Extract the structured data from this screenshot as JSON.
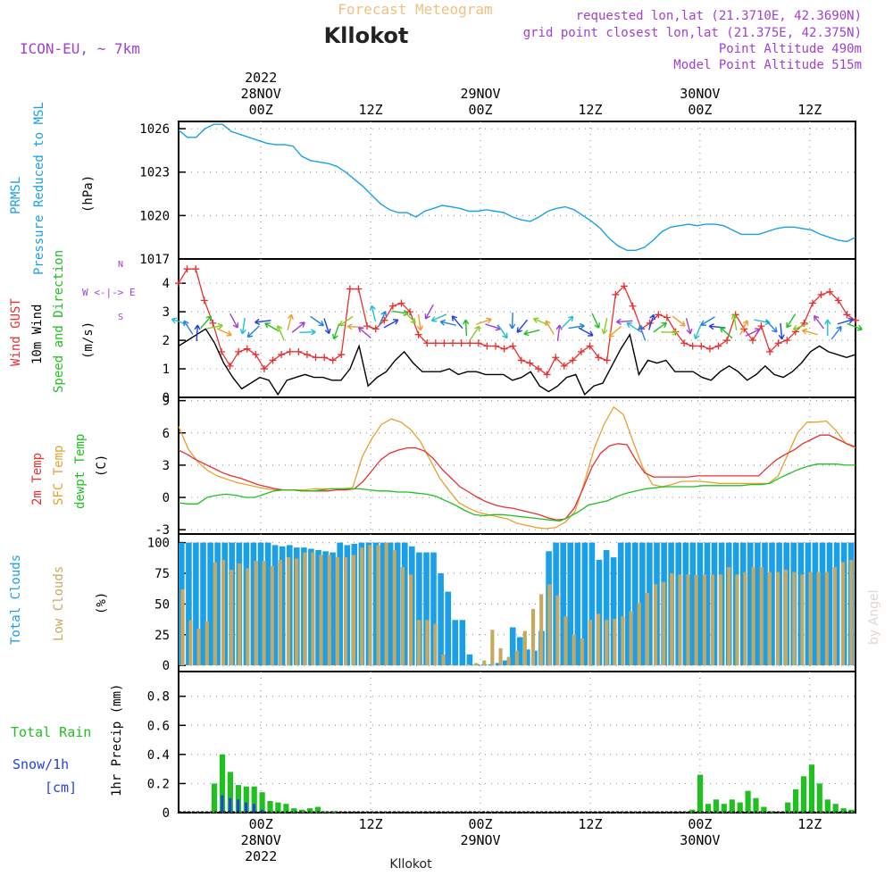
{
  "header": {
    "forecast_title": "Forecast Meteogram",
    "location": "Kllokot",
    "model": "ICON-EU, ~ 7km",
    "requested": "requested lon,lat (21.3710E, 42.3690N)",
    "grid_point": "grid point closest lon,lat (21.375E, 42.375N)",
    "point_altitude": "Point Altitude 490m",
    "model_altitude": "Model Point Altitude 515m",
    "footer_location": "Kllokot",
    "credit": "by Angel"
  },
  "time_axis": {
    "top_ticks": [
      "00Z",
      "12Z",
      "00Z",
      "12Z",
      "00Z",
      "12Z"
    ],
    "top_dates": [
      "28NOV",
      "29NOV",
      "30NOV"
    ],
    "year": "2022",
    "bottom_ticks": [
      "00Z",
      "12Z",
      "00Z",
      "12Z",
      "00Z",
      "12Z"
    ],
    "bottom_dates": [
      "28NOV",
      "29NOV",
      "30NOV"
    ]
  },
  "panels": {
    "pressure": {
      "label1": "PRMSL",
      "label2": "Pressure Reduced to MSL",
      "unit": "(hPa)",
      "ticks": [
        "1026",
        "1023",
        "1020",
        "1017"
      ]
    },
    "wind": {
      "label_gust": "Wind GUST",
      "label_wind": "10m Wind",
      "label_speed": "Speed and Direction",
      "unit": "(m/s)",
      "ticks": [
        "4",
        "3",
        "2",
        "1",
        "0"
      ],
      "compass_n": "N",
      "compass_s": "S",
      "compass_we": "W <-|-> E"
    },
    "temp": {
      "label_2m": "2m Temp",
      "label_sfc": "SFC Temp",
      "label_dew": "dewpt Temp",
      "unit": "(C)",
      "ticks": [
        "9",
        "6",
        "3",
        "0",
        "-3"
      ]
    },
    "clouds": {
      "label_total": "Total Clouds",
      "label_low": "Low Clouds",
      "unit": "(%)",
      "ticks": [
        "100",
        "75",
        "50",
        "25",
        "0"
      ]
    },
    "precip": {
      "label_rain": "Total Rain",
      "label_snow": "Snow/1h",
      "label_cm": "[cm]",
      "unit": "1hr Precip (mm)",
      "ticks": [
        "0.8",
        "0.6",
        "0.4",
        "0.2",
        "0"
      ]
    }
  },
  "colors": {
    "pressure": "#1aa0e8",
    "gust": "#e83030",
    "wind": "#000000",
    "t2m": "#e83030",
    "tsfc": "#e8a030",
    "dew": "#20c020",
    "total_clouds": "#1aa0e8",
    "low_clouds": "#c8a860",
    "rain": "#20c020",
    "snow": "#2040e8",
    "title_orange": "#f0c080",
    "purple": "#a040d0"
  },
  "chart_data": {
    "type": "line",
    "x_start": "2022-11-27T15Z",
    "x_step_hours": 1,
    "x_end": "2022-11-30T17Z",
    "pressure_hpa": [
      1025.9,
      1025.4,
      1025.4,
      1026.0,
      1026.3,
      1026.3,
      1025.8,
      1025.6,
      1025.4,
      1025.2,
      1025.0,
      1024.9,
      1024.9,
      1024.8,
      1024.1,
      1023.8,
      1023.7,
      1023.6,
      1023.4,
      1023.0,
      1022.5,
      1022.0,
      1021.4,
      1020.8,
      1020.4,
      1020.2,
      1020.2,
      1019.9,
      1020.3,
      1020.5,
      1020.7,
      1020.6,
      1020.5,
      1020.3,
      1020.3,
      1020.4,
      1020.3,
      1020.2,
      1019.9,
      1019.7,
      1019.6,
      1019.9,
      1020.3,
      1020.5,
      1020.6,
      1020.4,
      1020.0,
      1019.6,
      1019.1,
      1018.4,
      1017.9,
      1017.6,
      1017.6,
      1017.8,
      1018.3,
      1018.9,
      1019.2,
      1019.3,
      1019.4,
      1019.3,
      1019.4,
      1019.4,
      1019.3,
      1019.0,
      1018.7,
      1018.7,
      1018.7,
      1018.9,
      1019.1,
      1019.2,
      1019.2,
      1019.1,
      1019.0,
      1018.7,
      1018.5,
      1018.3,
      1018.2,
      1018.5
    ],
    "wind_gust_ms": [
      4.0,
      4.5,
      4.5,
      3.4,
      2.6,
      1.6,
      1.1,
      1.6,
      1.7,
      1.5,
      1.0,
      1.3,
      1.5,
      1.6,
      1.6,
      1.5,
      1.4,
      1.4,
      1.3,
      1.5,
      3.8,
      3.8,
      2.5,
      2.4,
      2.7,
      3.2,
      3.3,
      3.0,
      2.2,
      1.9,
      1.9,
      1.9,
      1.9,
      1.9,
      1.9,
      1.9,
      1.8,
      1.8,
      1.7,
      1.8,
      1.3,
      1.2,
      1.0,
      0.8,
      1.4,
      1.1,
      1.3,
      1.6,
      1.8,
      1.4,
      1.3,
      3.6,
      3.9,
      3.2,
      2.4,
      2.6,
      2.9,
      2.8,
      2.3,
      1.9,
      1.8,
      1.8,
      1.7,
      1.8,
      2.0,
      2.9,
      2.4,
      2.0,
      2.5,
      1.6,
      1.9,
      2.0,
      2.3,
      2.6,
      3.3,
      3.6,
      3.7,
      3.4,
      2.9,
      2.7
    ],
    "wind_speed_ms": [
      1.8,
      2.0,
      2.2,
      2.4,
      1.9,
      1.2,
      0.7,
      0.3,
      0.5,
      0.7,
      0.6,
      0.1,
      0.6,
      0.7,
      0.8,
      0.7,
      0.7,
      0.6,
      0.6,
      1.0,
      1.8,
      0.4,
      0.7,
      0.9,
      1.3,
      1.6,
      1.2,
      0.9,
      0.9,
      0.9,
      1.0,
      0.8,
      0.9,
      0.9,
      0.8,
      0.8,
      0.8,
      0.6,
      0.7,
      0.9,
      0.4,
      0.2,
      0.4,
      0.7,
      0.8,
      0.1,
      0.4,
      0.5,
      1.1,
      1.7,
      2.2,
      0.8,
      1.3,
      1.2,
      1.3,
      0.9,
      0.9,
      0.9,
      0.7,
      0.6,
      0.9,
      1.1,
      0.9,
      0.6,
      0.8,
      1.1,
      0.8,
      0.7,
      0.9,
      1.2,
      1.6,
      1.8,
      1.6,
      1.5,
      1.4,
      1.5
    ],
    "temp_2m_c": [
      4.4,
      4.0,
      3.5,
      3.1,
      2.7,
      2.3,
      2.0,
      1.8,
      1.5,
      1.2,
      1.0,
      0.8,
      0.7,
      0.7,
      0.6,
      0.6,
      0.6,
      0.6,
      0.7,
      0.7,
      0.8,
      1.5,
      2.5,
      3.5,
      4.1,
      4.4,
      4.6,
      4.6,
      4.3,
      3.6,
      2.6,
      1.8,
      1.0,
      0.5,
      0.0,
      -0.4,
      -0.7,
      -0.9,
      -1.0,
      -1.2,
      -1.4,
      -1.6,
      -1.9,
      -2.1,
      -2.0,
      -1.0,
      0.8,
      2.8,
      4.1,
      4.8,
      5.0,
      4.9,
      3.5,
      2.3,
      1.9,
      1.9,
      1.9,
      1.9,
      1.9,
      2.0,
      2.0,
      2.0,
      2.0,
      2.0,
      2.0,
      2.0,
      2.0,
      2.8,
      3.5,
      4.0,
      4.4,
      5.0,
      5.4,
      5.8,
      5.8,
      5.4,
      5.0,
      4.7
    ],
    "temp_sfc_c": [
      6.6,
      4.5,
      3.3,
      2.5,
      2.0,
      1.7,
      1.4,
      1.2,
      1.0,
      0.8,
      0.7,
      0.7,
      0.7,
      0.7,
      0.8,
      0.8,
      0.8,
      0.8,
      0.9,
      3.8,
      5.5,
      6.8,
      7.3,
      7.0,
      6.3,
      5.2,
      3.5,
      1.8,
      0.6,
      -0.5,
      -1.0,
      -1.4,
      -1.6,
      -1.8,
      -2.0,
      -2.4,
      -2.6,
      -2.8,
      -2.9,
      -2.8,
      -2.3,
      -1.3,
      1.5,
      4.6,
      6.8,
      8.4,
      7.7,
      5.2,
      2.8,
      1.2,
      1.0,
      1.2,
      1.5,
      1.5,
      1.5,
      1.4,
      1.3,
      1.3,
      1.3,
      1.3,
      1.3,
      1.3,
      2.0,
      4.0,
      6.0,
      7.0,
      7.0,
      7.1,
      6.2,
      5.0,
      4.6
    ],
    "dewpt_c": [
      -0.5,
      -0.6,
      -0.6,
      0.0,
      0.2,
      0.3,
      0.2,
      0.0,
      0.0,
      0.3,
      0.6,
      0.7,
      0.7,
      0.6,
      0.6,
      0.7,
      0.8,
      0.8,
      0.8,
      0.8,
      0.7,
      0.6,
      0.6,
      0.5,
      0.5,
      0.4,
      0.3,
      0.1,
      -0.3,
      -0.7,
      -1.2,
      -1.6,
      -1.7,
      -1.6,
      -1.6,
      -1.7,
      -1.8,
      -1.9,
      -2.0,
      -2.1,
      -2.2,
      -1.8,
      -1.3,
      -0.7,
      -0.5,
      -0.3,
      0.1,
      0.4,
      0.6,
      0.8,
      0.9,
      1.0,
      1.0,
      1.0,
      1.0,
      1.1,
      1.1,
      1.1,
      1.1,
      1.1,
      1.2,
      1.2,
      1.3,
      1.8,
      2.2,
      2.6,
      2.9,
      3.1,
      3.1,
      3.1,
      3.0,
      3.0
    ],
    "total_clouds_pct": [
      100,
      100,
      100,
      100,
      100,
      100,
      100,
      100,
      100,
      100,
      100,
      100,
      100,
      98,
      97,
      98,
      96,
      96,
      95,
      94,
      93,
      92,
      100,
      98,
      99,
      100,
      100,
      100,
      100,
      100,
      100,
      100,
      97,
      92,
      92,
      92,
      75,
      60,
      37,
      37,
      9,
      1,
      1,
      1,
      2,
      4,
      31,
      23,
      13,
      12,
      28,
      93,
      100,
      100,
      100,
      100,
      100,
      100,
      86,
      94,
      88,
      100,
      100,
      100,
      100,
      100,
      100,
      100,
      100,
      100,
      100,
      100,
      100,
      100,
      100,
      100,
      100,
      100,
      100,
      100,
      100,
      100,
      100,
      100,
      100,
      100,
      100,
      100,
      100,
      100,
      100,
      100,
      100,
      100
    ],
    "low_clouds_pct": [
      62,
      37,
      30,
      36,
      84,
      86,
      78,
      83,
      79,
      85,
      85,
      81,
      86,
      88,
      87,
      92,
      92,
      90,
      90,
      88,
      88,
      90,
      96,
      98,
      98,
      100,
      94,
      80,
      74,
      37,
      37,
      34,
      9,
      1,
      0,
      1,
      2,
      4,
      29,
      14,
      7,
      12,
      28,
      46,
      58,
      66,
      57,
      40,
      25,
      22,
      37,
      42,
      37,
      38,
      40,
      44,
      51,
      59,
      66,
      68,
      75,
      74,
      74,
      74,
      74,
      74,
      74,
      80,
      74,
      76,
      80,
      80,
      76,
      76,
      78,
      76,
      74,
      76,
      76,
      76,
      80,
      84,
      86
    ],
    "rain_mm": [
      0,
      0,
      0,
      0,
      0.2,
      0.4,
      0.28,
      0.19,
      0.18,
      0.18,
      0.14,
      0.08,
      0.07,
      0.06,
      0.03,
      0.02,
      0.03,
      0.04,
      0.01,
      0.01,
      0,
      0,
      0,
      0,
      0,
      0,
      0,
      0,
      0,
      0,
      0,
      0,
      0,
      0,
      0,
      0,
      0,
      0,
      0,
      0,
      0,
      0,
      0,
      0,
      0,
      0,
      0,
      0,
      0,
      0,
      0,
      0,
      0,
      0,
      0,
      0,
      0,
      0,
      0,
      0,
      0,
      0,
      0,
      0,
      0.02,
      0.26,
      0.06,
      0.09,
      0.06,
      0.09,
      0.07,
      0.15,
      0.1,
      0.04,
      0.01,
      0,
      0.07,
      0.16,
      0.25,
      0.33,
      0.2,
      0.09,
      0.06,
      0.03,
      0.02
    ],
    "snow_cm": [
      0,
      0,
      0,
      0,
      0,
      0.12,
      0.1,
      0.09,
      0.07,
      0.06,
      0.02,
      0,
      0,
      0,
      0,
      0,
      0,
      0,
      0,
      0
    ]
  }
}
